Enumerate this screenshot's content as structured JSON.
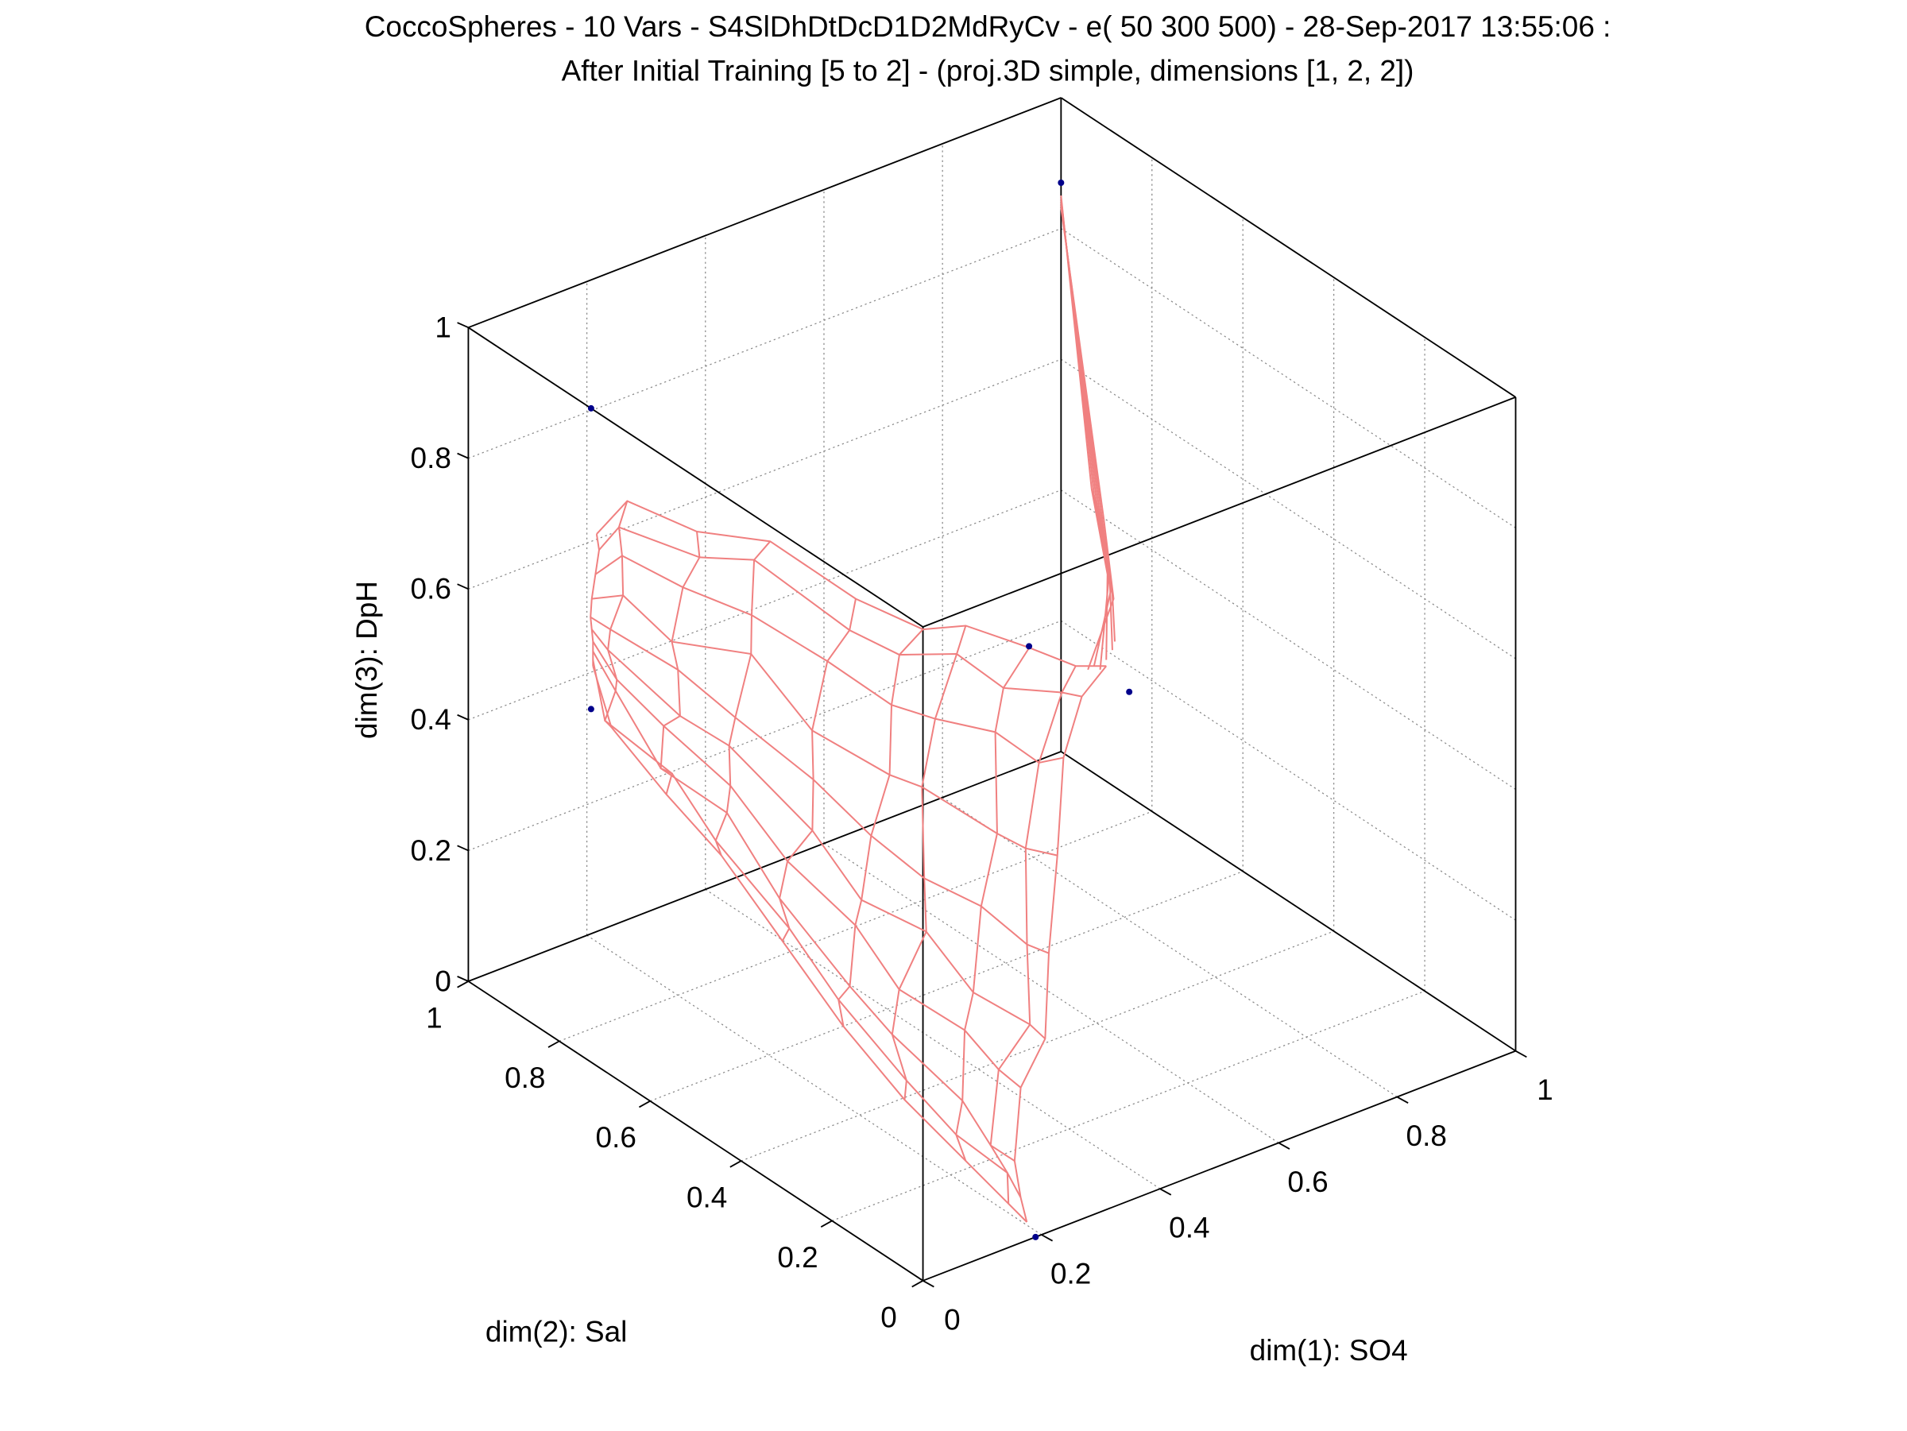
{
  "chart_data": {
    "type": "surface-3d",
    "title_line1": "CoccoSpheres - 10 Vars - S4SlDhDtDcD1D2MdRyCv - e( 50 300 500) - 28-Sep-2017 13:55:06 :",
    "title_line2": "After Initial Training [5 to 2] - (proj.3D simple, dimensions [1, 2, 2])",
    "xlabel": "dim(1): SO4",
    "ylabel": "dim(2): Sal",
    "zlabel": "dim(3): DpH",
    "xlim": [
      0,
      1
    ],
    "ylim": [
      0,
      1
    ],
    "zlim": [
      0,
      1
    ],
    "x_ticks": [
      "0",
      "0.2",
      "0.4",
      "0.6",
      "0.8",
      "1"
    ],
    "y_ticks": [
      "0",
      "0.2",
      "0.4",
      "0.6",
      "0.8",
      "1"
    ],
    "z_ticks": [
      "0",
      "0.2",
      "0.4",
      "0.6",
      "0.8",
      "1"
    ],
    "tick_values": [
      0,
      0.2,
      0.4,
      0.6,
      0.8,
      1
    ],
    "grid": true,
    "mesh_color": "#f08080",
    "point_color": "#00008b",
    "data_points": [
      {
        "x": 1.0,
        "y": 1.0,
        "z": 0.87
      },
      {
        "x": 0.0,
        "y": 0.73,
        "z": 1.0
      },
      {
        "x": 0.0,
        "y": 0.73,
        "z": 0.54
      },
      {
        "x": 0.946,
        "y": 1.0,
        "z": 0.18
      },
      {
        "x": 1.0,
        "y": 0.85,
        "z": 0.16
      },
      {
        "x": 0.19,
        "y": 0.0,
        "z": 0.0
      }
    ]
  }
}
